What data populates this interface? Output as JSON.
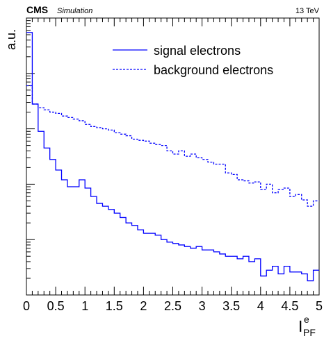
{
  "header": {
    "experiment": "CMS",
    "tag": "Simulation",
    "energy": "13 TeV"
  },
  "chart_data": {
    "type": "line",
    "title": "",
    "xlabel": {
      "base": "I",
      "sup": "e",
      "sub": "PF"
    },
    "ylabel": "a.u.",
    "xlim": [
      0,
      5
    ],
    "ylim": [
      1e-05,
      1
    ],
    "yscale": "log",
    "x_ticks": [
      "0",
      "0.5",
      "1",
      "1.5",
      "2",
      "2.5",
      "3",
      "3.5",
      "4",
      "4.5",
      "5"
    ],
    "y_tick_labels_shown": false,
    "grid": false,
    "legend_position": "top-right",
    "bin_width": 0.1,
    "series": [
      {
        "name": "signal electrons",
        "style": "solid",
        "color": "#0000ff",
        "values": [
          0.55,
          0.028,
          0.009,
          0.0045,
          0.0028,
          0.0018,
          0.0012,
          0.0009,
          0.0009,
          0.0012,
          0.00085,
          0.0006,
          0.00045,
          0.0004,
          0.00035,
          0.0003,
          0.00025,
          0.0002,
          0.00018,
          0.00015,
          0.00013,
          0.00013,
          0.00012,
          0.0001,
          9e-05,
          8.5e-05,
          8e-05,
          7.5e-05,
          7e-05,
          7.5e-05,
          6.5e-05,
          6.5e-05,
          6e-05,
          5.5e-05,
          5e-05,
          5e-05,
          4.5e-05,
          5e-05,
          4e-05,
          4.5e-05,
          2.2e-05,
          2.8e-05,
          3.3e-05,
          2.4e-05,
          3.3e-05,
          2.6e-05,
          2.6e-05,
          2.4e-05,
          1.8e-05,
          2.8e-05
        ]
      },
      {
        "name": "background electrons",
        "style": "dashed",
        "color": "#0000ff",
        "values": [
          0.06,
          0.028,
          0.024,
          0.022,
          0.02,
          0.019,
          0.017,
          0.016,
          0.015,
          0.014,
          0.012,
          0.011,
          0.0105,
          0.01,
          0.0095,
          0.0085,
          0.008,
          0.0075,
          0.0065,
          0.0062,
          0.006,
          0.0055,
          0.0052,
          0.005,
          0.004,
          0.0035,
          0.004,
          0.0032,
          0.0035,
          0.003,
          0.0028,
          0.0025,
          0.0023,
          0.0023,
          0.0016,
          0.0015,
          0.0012,
          0.00115,
          0.00105,
          0.0011,
          0.0008,
          0.001,
          0.0007,
          0.0008,
          0.00085,
          0.0006,
          0.00065,
          0.00052,
          0.0004,
          0.0005
        ]
      }
    ]
  }
}
